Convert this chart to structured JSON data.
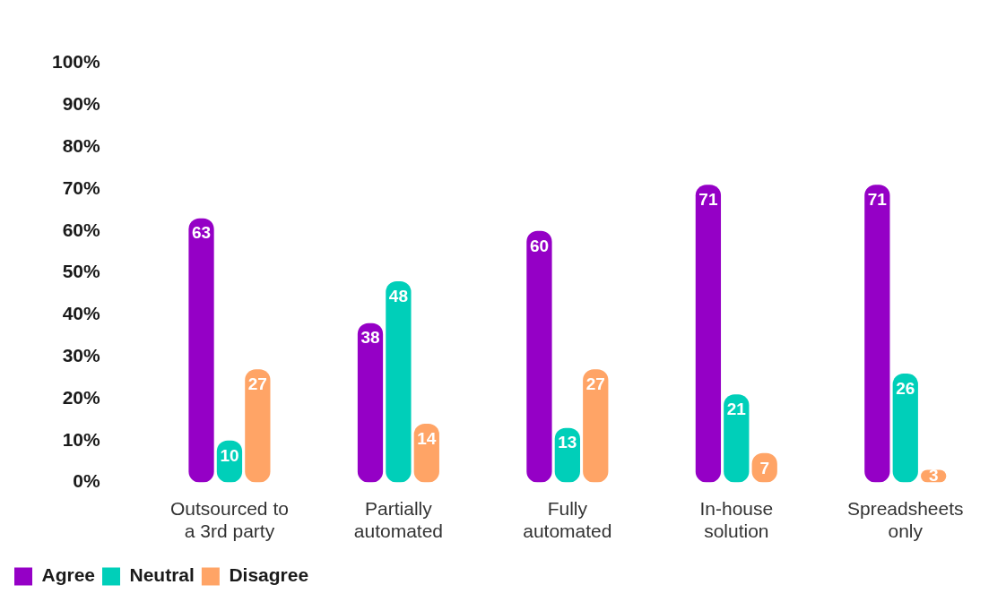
{
  "chart_data": {
    "type": "bar",
    "categories": [
      "Outsourced to a 3rd party",
      "Partially automated",
      "Fully automated",
      "In-house solution",
      "Spreadsheets only"
    ],
    "series": [
      {
        "name": "Agree",
        "color": "#9500c6",
        "values": [
          63,
          38,
          60,
          71,
          71
        ]
      },
      {
        "name": "Neutral",
        "color": "#00cfb9",
        "values": [
          10,
          48,
          13,
          21,
          26
        ]
      },
      {
        "name": "Disagree",
        "color": "#ffa466",
        "values": [
          27,
          14,
          27,
          7,
          3
        ]
      }
    ],
    "ylim": [
      0,
      100
    ],
    "yticks": [
      {
        "value": 0,
        "label": "0%"
      },
      {
        "value": 10,
        "label": "10%"
      },
      {
        "value": 20,
        "label": "20%"
      },
      {
        "value": 30,
        "label": "30%"
      },
      {
        "value": 40,
        "label": "40%"
      },
      {
        "value": 50,
        "label": "50%"
      },
      {
        "value": 60,
        "label": "60%"
      },
      {
        "value": 70,
        "label": "70%"
      },
      {
        "value": 80,
        "label": "80%"
      },
      {
        "value": 90,
        "label": "90%"
      },
      {
        "value": 100,
        "label": "100%"
      }
    ],
    "grid": false,
    "legend": "bottom left",
    "data_labels": true
  }
}
